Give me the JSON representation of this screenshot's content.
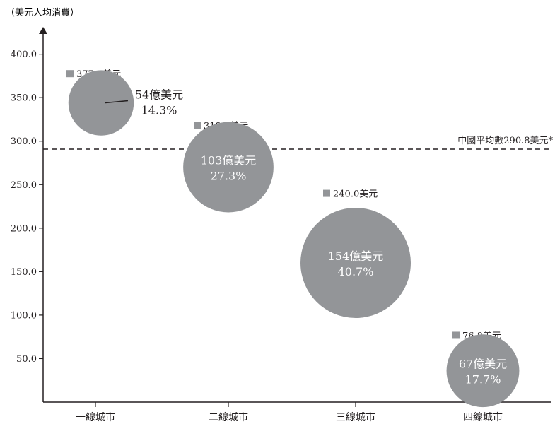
{
  "chart_data": {
    "type": "bubble",
    "ylabel": "（美元人均消費）",
    "ylim": [
      0,
      420
    ],
    "yticks": [
      50,
      100,
      150,
      200,
      250,
      300,
      350,
      400
    ],
    "yticklabels": [
      "50.0",
      "100.0",
      "150.0",
      "200.0",
      "250.0",
      "300.0",
      "350.0",
      "400.0"
    ],
    "categories": [
      "一線城市",
      "二線城市",
      "三線城市",
      "四線城市"
    ],
    "points": [
      {
        "category": "一線城市",
        "per_capita": 377.6,
        "label": "377.6美元",
        "bubble_center": 344,
        "bubble_size_pct": 14.3,
        "bubble_text": "54億美元",
        "bubble_pct_text": "14.3%",
        "callout": true
      },
      {
        "category": "二線城市",
        "per_capita": 318.0,
        "label": "318.0美元",
        "bubble_center": 270,
        "bubble_size_pct": 27.3,
        "bubble_text": "103億美元",
        "bubble_pct_text": "27.3%",
        "callout": false
      },
      {
        "category": "三線城市",
        "per_capita": 240.0,
        "label": "240.0美元",
        "bubble_center": 160,
        "bubble_size_pct": 40.7,
        "bubble_text": "154億美元",
        "bubble_pct_text": "40.7%",
        "callout": false
      },
      {
        "category": "四線城市",
        "per_capita": 76.8,
        "label": "76.8美元",
        "bubble_center": 36,
        "bubble_size_pct": 17.7,
        "bubble_text": "67億美元",
        "bubble_pct_text": "17.7%",
        "callout": false
      }
    ],
    "reference_line": {
      "value": 290.8,
      "label": "中國平均數290.8美元*",
      "style": "dashed"
    },
    "colors": {
      "bubble": "#939598",
      "marker": "#939598",
      "axis": "#231f20",
      "bubble_text": "#ffffff",
      "text": "#231f20"
    },
    "grid": false,
    "legend": "none"
  }
}
